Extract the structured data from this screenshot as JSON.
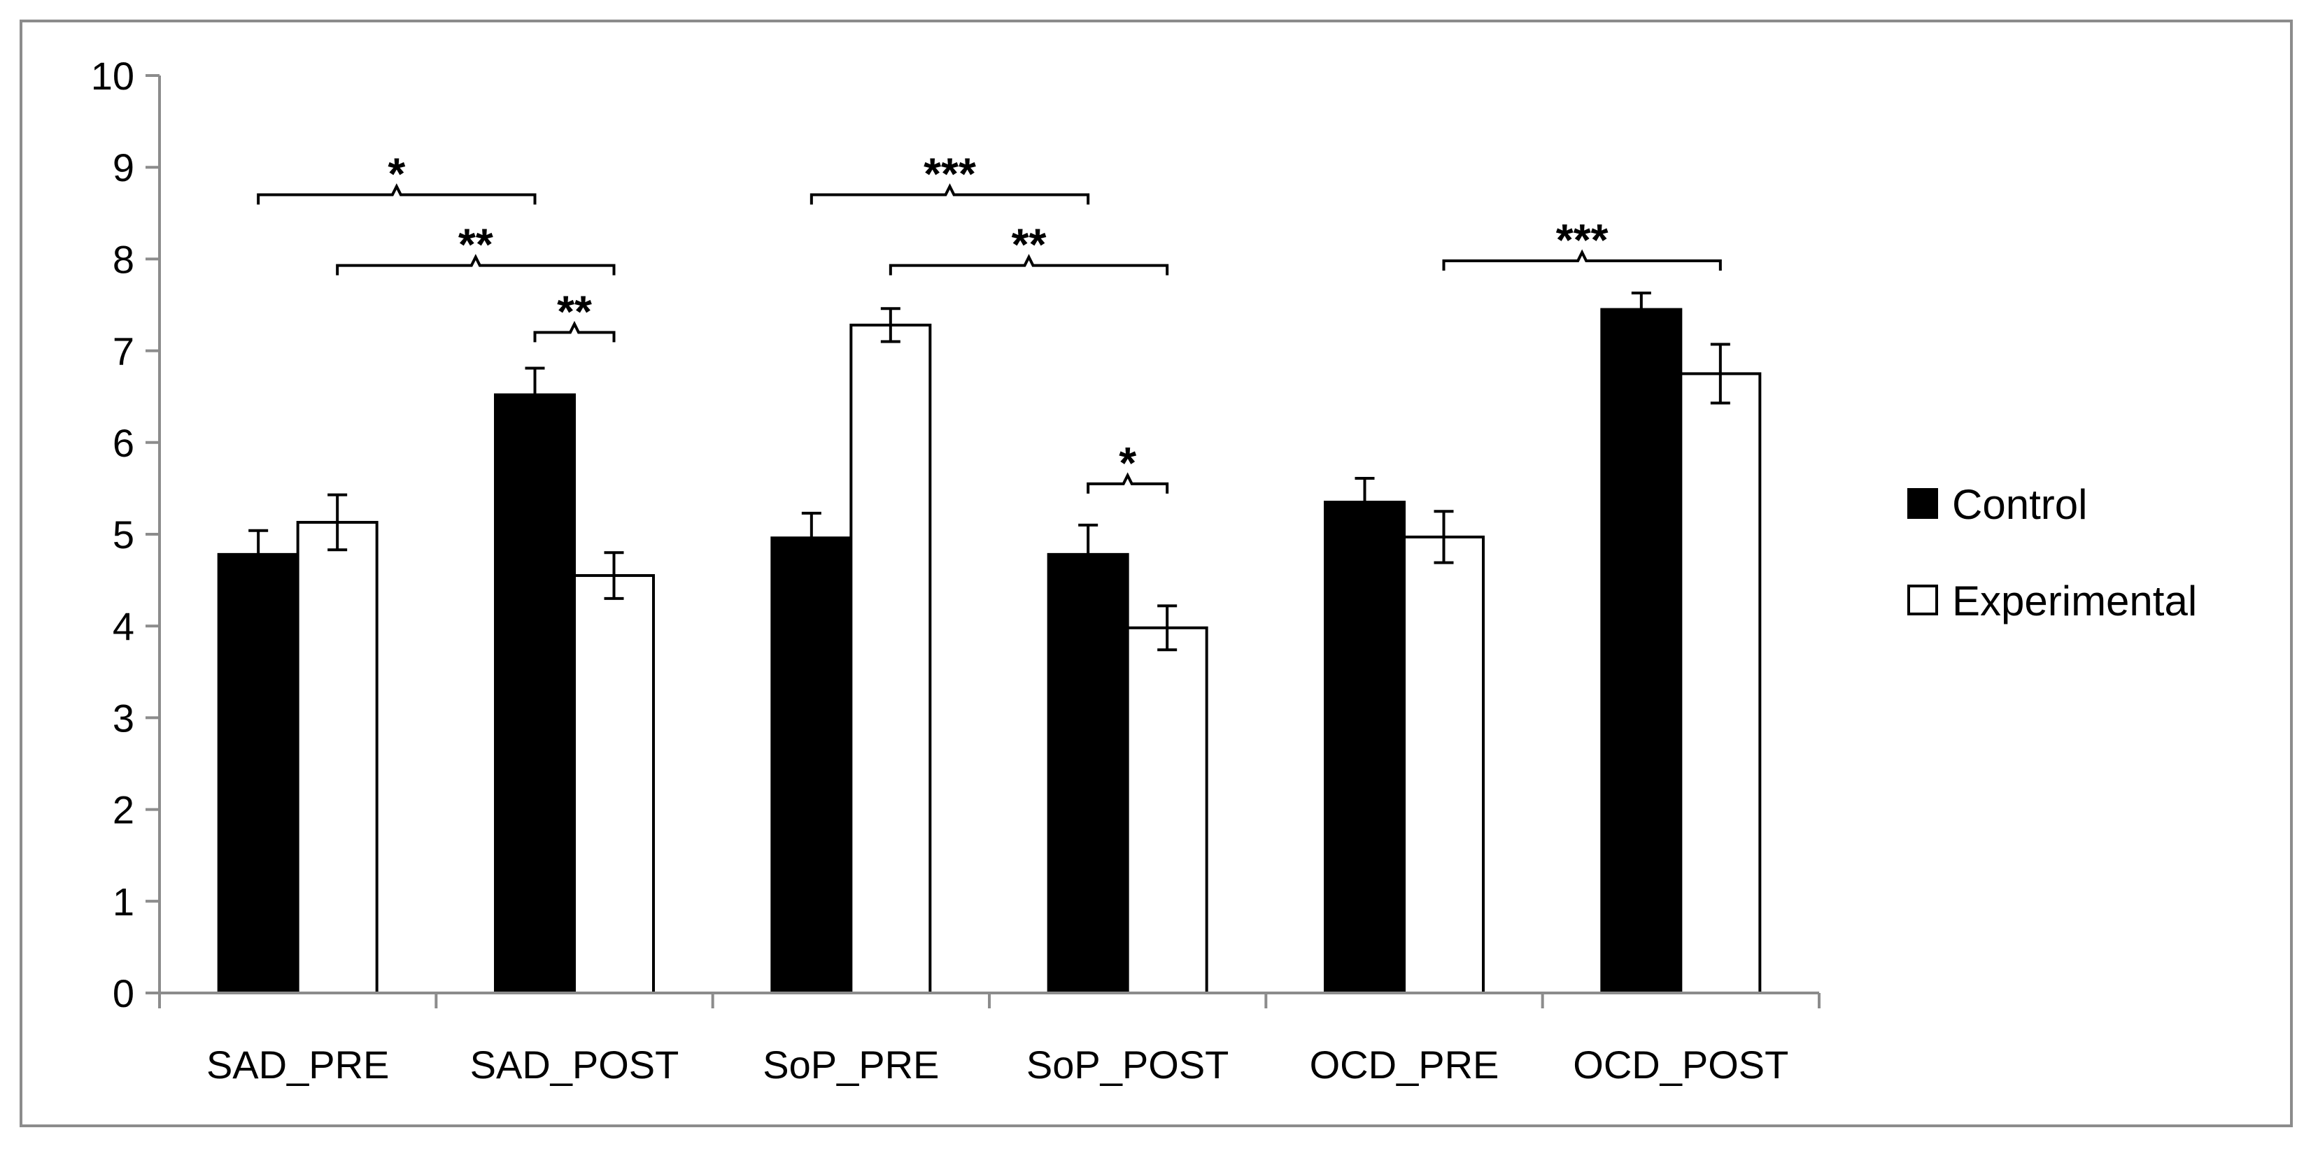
{
  "chart_data": {
    "type": "bar",
    "title": "",
    "xlabel": "",
    "ylabel": "",
    "ylim": [
      0,
      10
    ],
    "yticks": [
      0,
      1,
      2,
      3,
      4,
      5,
      6,
      7,
      8,
      9,
      10
    ],
    "grid": false,
    "legend_position": "right",
    "categories": [
      "SAD_PRE",
      "SAD_POST",
      "SoP_PRE",
      "SoP_POST",
      "OCD_PRE",
      "OCD_POST"
    ],
    "series": [
      {
        "name": "Control",
        "fill": "#000000",
        "values": [
          4.78,
          6.52,
          4.96,
          4.78,
          5.35,
          7.45
        ],
        "errors": [
          0.26,
          0.29,
          0.27,
          0.32,
          0.26,
          0.18
        ]
      },
      {
        "name": "Experimental",
        "fill": "#ffffff",
        "values": [
          5.13,
          4.55,
          7.28,
          3.98,
          4.97,
          6.75
        ],
        "errors": [
          0.3,
          0.25,
          0.18,
          0.24,
          0.28,
          0.32
        ]
      }
    ],
    "significance": [
      {
        "label": "*",
        "from": {
          "category": 0,
          "series": 0
        },
        "to": {
          "category": 1,
          "series": 0
        },
        "y": 8.7
      },
      {
        "label": "**",
        "from": {
          "category": 0,
          "series": 1
        },
        "to": {
          "category": 1,
          "series": 1
        },
        "y": 7.93
      },
      {
        "label": "**",
        "from": {
          "category": 1,
          "series": 0
        },
        "to": {
          "category": 1,
          "series": 1
        },
        "y": 7.2
      },
      {
        "label": "***",
        "from": {
          "category": 2,
          "series": 0
        },
        "to": {
          "category": 3,
          "series": 0
        },
        "y": 8.7
      },
      {
        "label": "**",
        "from": {
          "category": 2,
          "series": 1
        },
        "to": {
          "category": 3,
          "series": 1
        },
        "y": 7.93
      },
      {
        "label": "*",
        "from": {
          "category": 3,
          "series": 0
        },
        "to": {
          "category": 3,
          "series": 1
        },
        "y": 5.55
      },
      {
        "label": "***",
        "from": {
          "category": 4,
          "series": 1
        },
        "to": {
          "category": 5,
          "series": 1
        },
        "y": 7.98
      }
    ]
  }
}
